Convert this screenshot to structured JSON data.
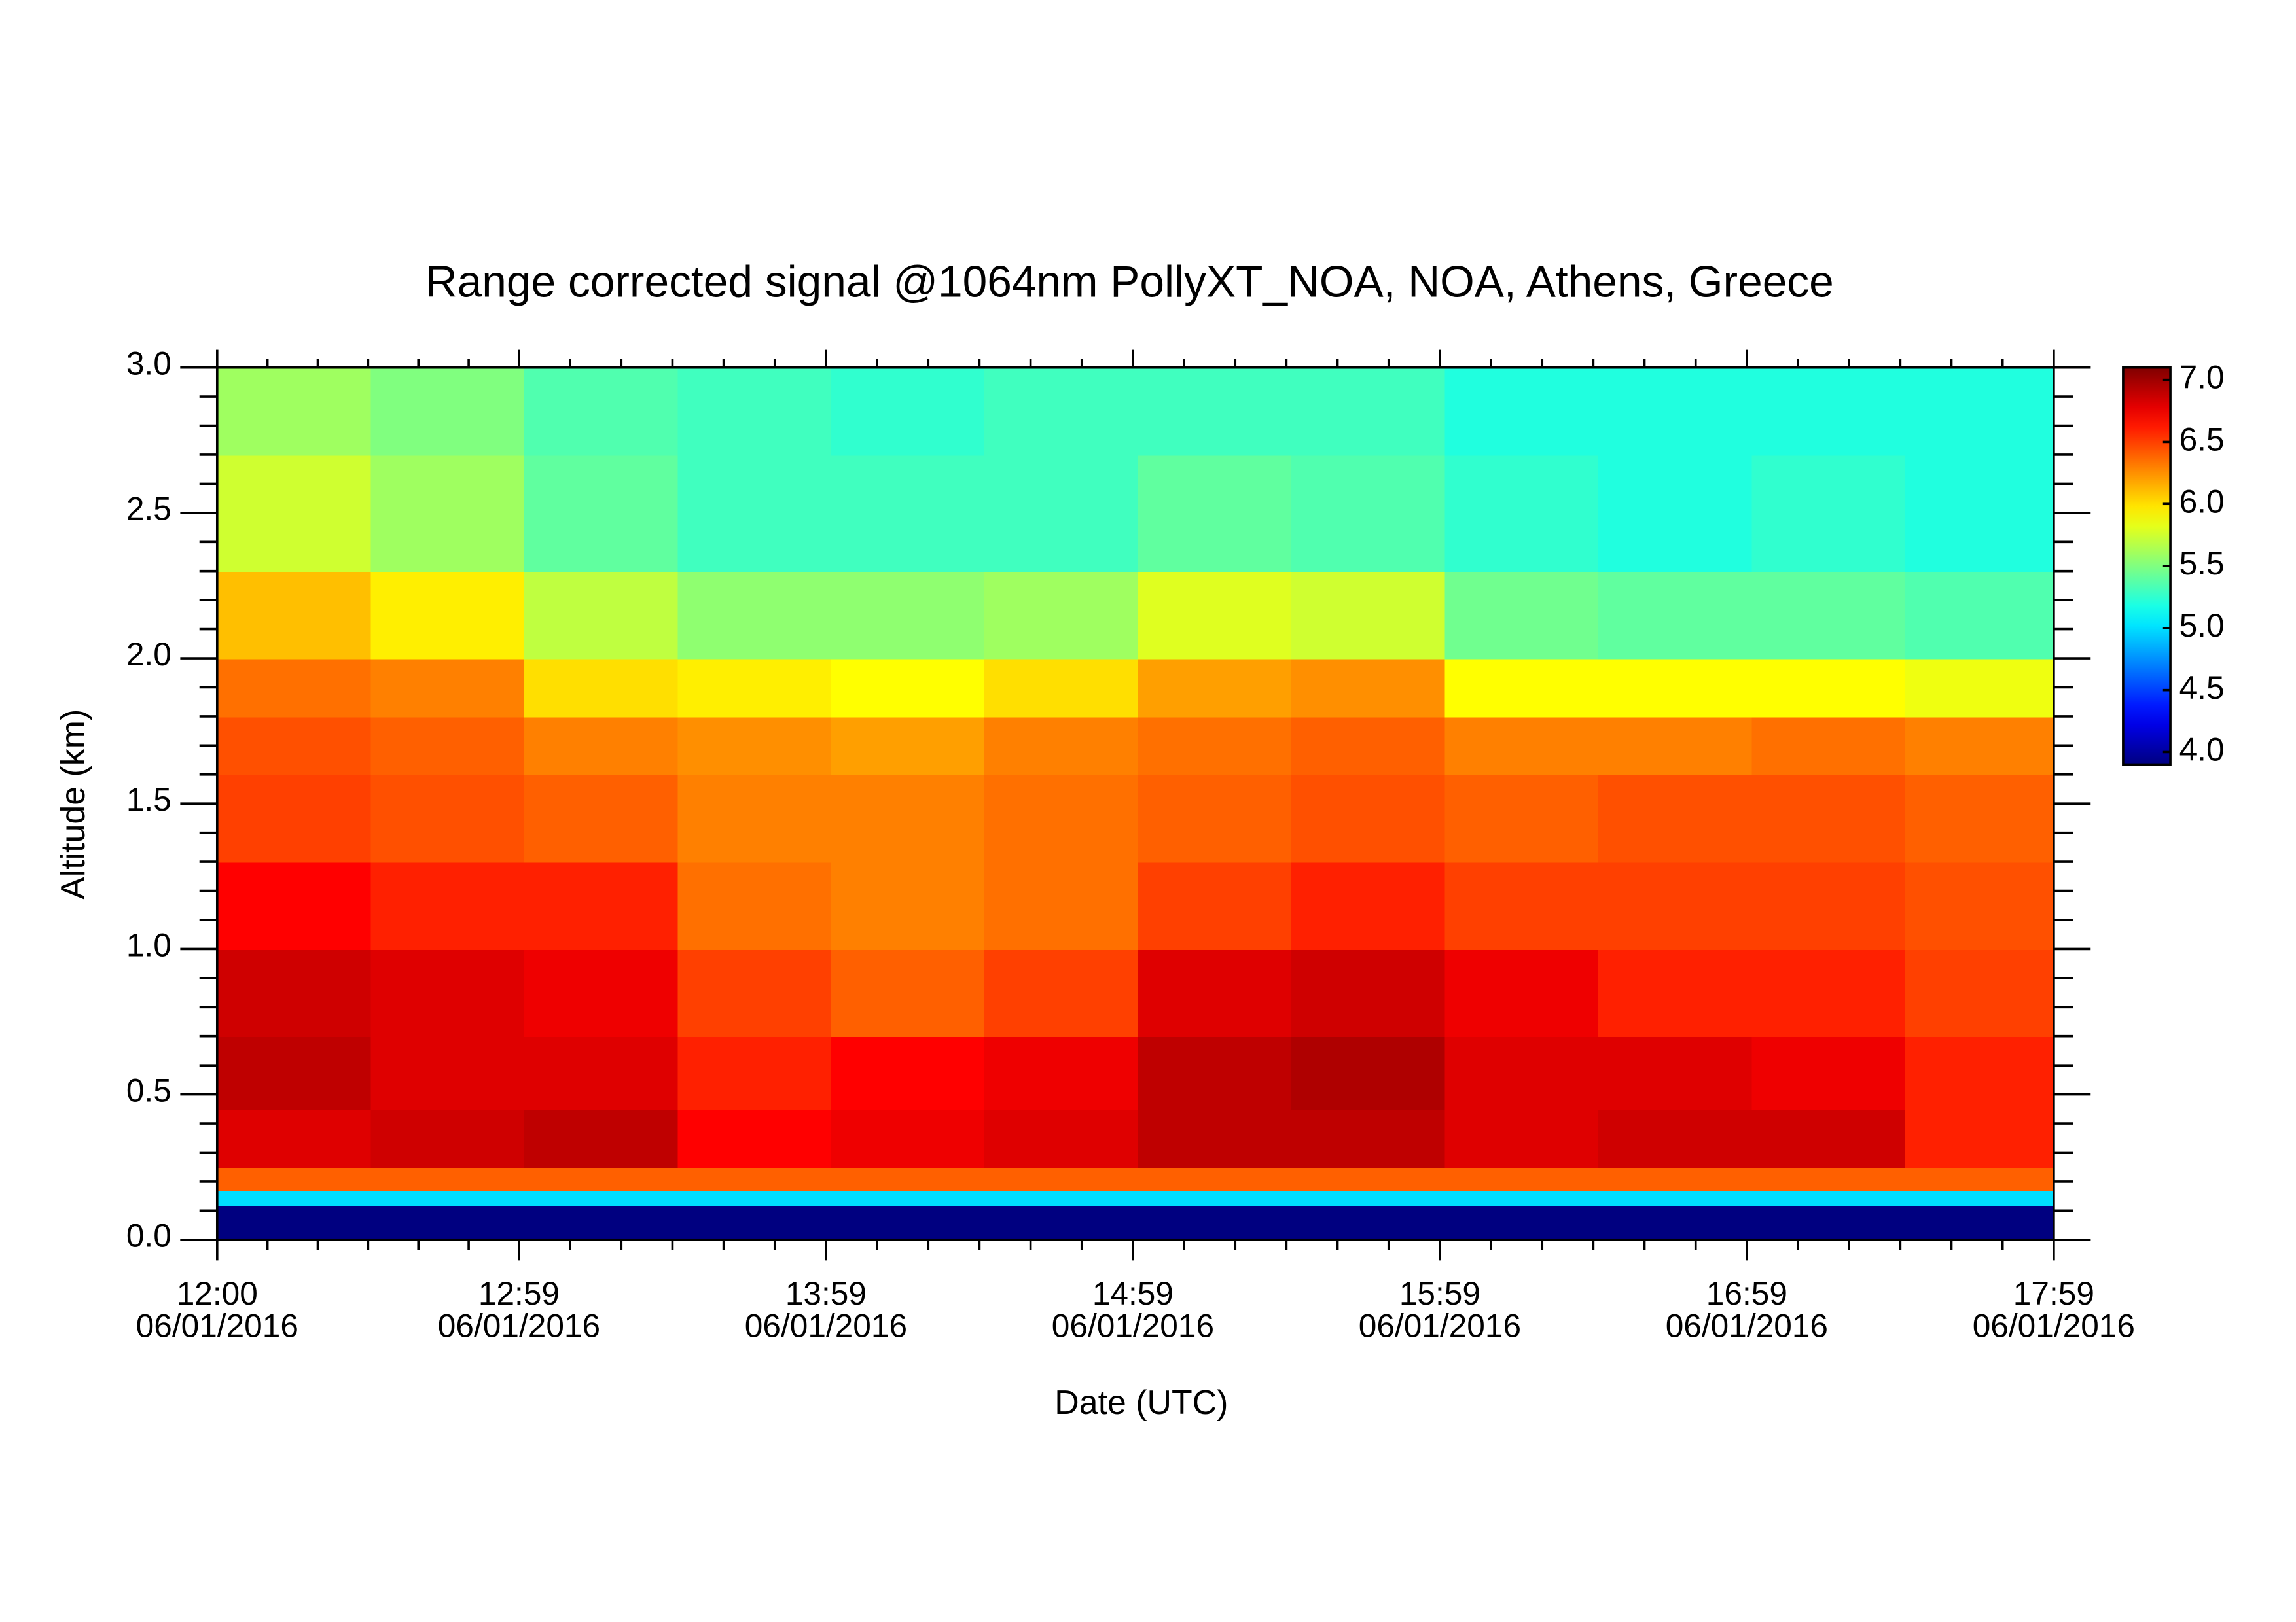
{
  "chart_data": {
    "type": "heatmap",
    "title": "Range corrected signal @1064nm  PollyXT_NOA, NOA, Athens, Greece",
    "x_label": "Date (UTC)",
    "y_label": "Altitude (km)",
    "colormap": "jet",
    "x": [
      "12:00",
      "12:30",
      "13:00",
      "13:30",
      "14:00",
      "14:30",
      "15:00",
      "15:30",
      "16:00",
      "16:30",
      "17:00",
      "17:30"
    ],
    "y": [
      0,
      0.12,
      0.17,
      0.25,
      0.45,
      0.7,
      1.0,
      1.3,
      1.6,
      1.8,
      2.0,
      2.3,
      2.7
    ],
    "z": [
      [
        3.9,
        3.9,
        3.9,
        3.9,
        3.9,
        3.9,
        3.9,
        3.9,
        3.9,
        3.9,
        3.9,
        3.9
      ],
      [
        5.0,
        5.0,
        5.0,
        5.0,
        5.0,
        5.0,
        5.0,
        5.0,
        5.0,
        5.0,
        5.0,
        5.0
      ],
      [
        6.4,
        6.4,
        6.4,
        6.4,
        6.4,
        6.4,
        6.4,
        6.4,
        6.4,
        6.4,
        6.4,
        6.4
      ],
      [
        6.8,
        6.85,
        6.9,
        6.7,
        6.75,
        6.8,
        6.9,
        6.9,
        6.8,
        6.85,
        6.85,
        6.6
      ],
      [
        6.9,
        6.8,
        6.8,
        6.6,
        6.7,
        6.75,
        6.9,
        6.95,
        6.8,
        6.8,
        6.75,
        6.6
      ],
      [
        6.85,
        6.8,
        6.75,
        6.5,
        6.4,
        6.5,
        6.8,
        6.85,
        6.75,
        6.6,
        6.6,
        6.5
      ],
      [
        6.7,
        6.6,
        6.6,
        6.35,
        6.3,
        6.35,
        6.5,
        6.6,
        6.5,
        6.5,
        6.5,
        6.45
      ],
      [
        6.5,
        6.45,
        6.4,
        6.3,
        6.3,
        6.35,
        6.4,
        6.45,
        6.4,
        6.45,
        6.45,
        6.4
      ],
      [
        6.45,
        6.4,
        6.3,
        6.25,
        6.2,
        6.3,
        6.35,
        6.4,
        6.3,
        6.3,
        6.35,
        6.3
      ],
      [
        6.35,
        6.3,
        6.0,
        5.95,
        5.9,
        6.0,
        6.2,
        6.25,
        5.9,
        5.9,
        5.9,
        5.85
      ],
      [
        6.1,
        5.95,
        5.7,
        5.55,
        5.55,
        5.6,
        5.8,
        5.75,
        5.45,
        5.4,
        5.4,
        5.35
      ],
      [
        5.75,
        5.6,
        5.4,
        5.3,
        5.3,
        5.3,
        5.4,
        5.35,
        5.25,
        5.2,
        5.25,
        5.2
      ],
      [
        5.6,
        5.5,
        5.35,
        5.3,
        5.25,
        5.3,
        5.3,
        5.3,
        5.2,
        5.2,
        5.2,
        5.2
      ]
    ],
    "xlim": [
      "12:00",
      "17:59"
    ],
    "xticks": [
      {
        "value": "12:00",
        "label": [
          "12:00",
          "06/01/2016"
        ]
      },
      {
        "value": "12:59",
        "label": [
          "12:59",
          "06/01/2016"
        ]
      },
      {
        "value": "13:59",
        "label": [
          "13:59",
          "06/01/2016"
        ]
      },
      {
        "value": "14:59",
        "label": [
          "14:59",
          "06/01/2016"
        ]
      },
      {
        "value": "15:59",
        "label": [
          "15:59",
          "06/01/2016"
        ]
      },
      {
        "value": "16:59",
        "label": [
          "16:59",
          "06/01/2016"
        ]
      },
      {
        "value": "17:59",
        "label": [
          "17:59",
          "06/01/2016"
        ]
      }
    ],
    "ylim": [
      0,
      3
    ],
    "yticks": [
      {
        "value": 0,
        "label": "0.0"
      },
      0.5,
      {
        "value": 1,
        "label": "1.0"
      },
      1.5,
      {
        "value": 2,
        "label": "2.0"
      },
      2.5,
      {
        "value": 3,
        "label": "3.0"
      }
    ],
    "clim": [
      3.9,
      7.1
    ],
    "cticks": [
      {
        "value": 4,
        "label": "4.0"
      },
      4.5,
      {
        "value": 5,
        "label": "5.0"
      },
      5.5,
      {
        "value": 6,
        "label": "6.0"
      },
      6.5,
      {
        "value": 7,
        "label": "7.0"
      }
    ]
  }
}
